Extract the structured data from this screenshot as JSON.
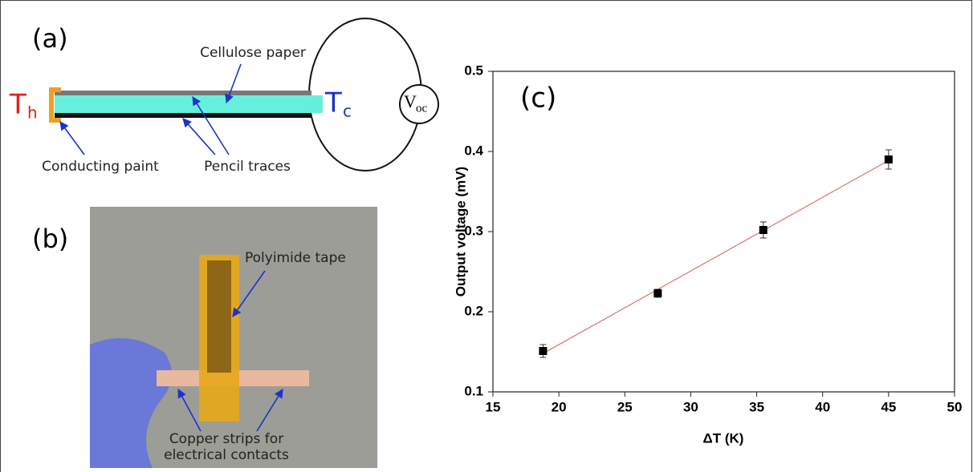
{
  "panel_a": {
    "label": "(a)",
    "hot": "T",
    "hot_sub": "h",
    "cold": "T",
    "cold_sub": "c",
    "meter": "V",
    "meter_sub": "oc",
    "annotations": [
      "Cellulose paper",
      "Conducting paint",
      "Pencil traces"
    ]
  },
  "panel_b": {
    "label": "(b)",
    "annotations": [
      "Polyimide tape",
      "Copper strips for",
      "electrical contacts"
    ]
  },
  "chart_data": {
    "type": "scatter",
    "label": "(c)",
    "xlabel": "ΔT (K)",
    "ylabel": "Output voltage (mV)",
    "x": [
      18.8,
      27.5,
      35.5,
      45
    ],
    "values": [
      0.151,
      0.223,
      0.302,
      0.39
    ],
    "errors": [
      0.008,
      0.005,
      0.01,
      0.012
    ],
    "color": "#000000",
    "fit_color": "#e07070",
    "xlim": [
      15,
      50
    ],
    "ylim": [
      0.1,
      0.5
    ],
    "xticks": [
      15,
      20,
      25,
      30,
      35,
      40,
      45,
      50
    ],
    "yticks": [
      0.1,
      0.2,
      0.3,
      0.4,
      0.5
    ]
  }
}
